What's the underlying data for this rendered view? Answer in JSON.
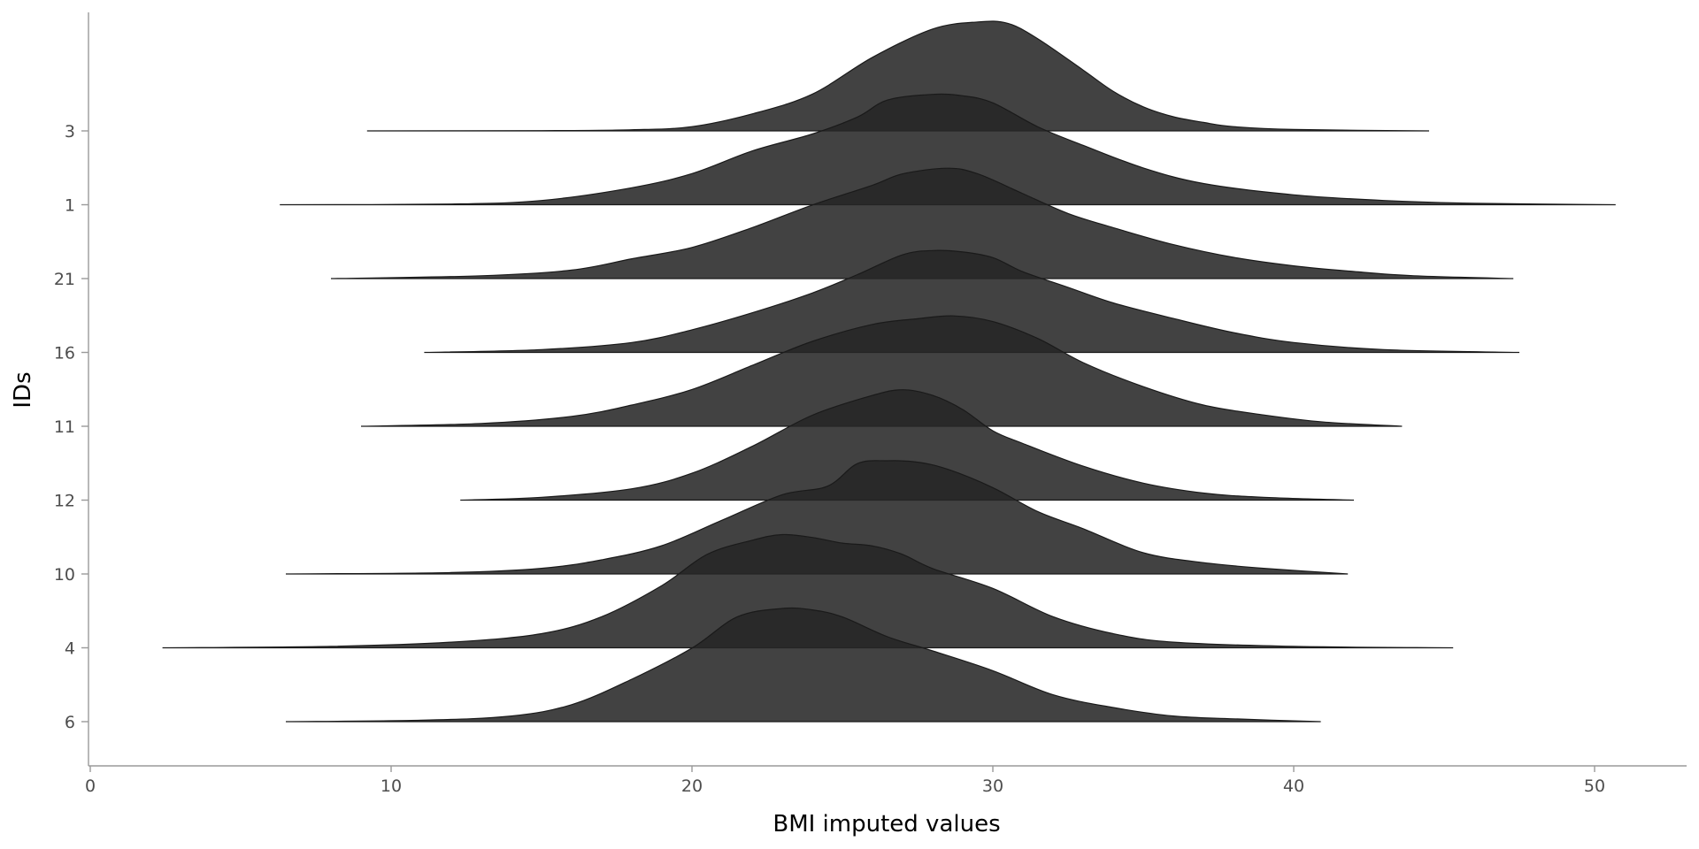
{
  "chart_data": {
    "type": "ridgeline",
    "xlabel": "BMI imputed values",
    "ylabel": "IDs",
    "xlim": [
      0,
      53
    ],
    "x_ticks": [
      0,
      10,
      20,
      30,
      40,
      50
    ],
    "grid": false,
    "fill_color": "#262626",
    "categories": [
      "3",
      "1",
      "21",
      "16",
      "11",
      "12",
      "10",
      "4",
      "6"
    ],
    "series": [
      {
        "id": "3",
        "range": [
          9.2,
          44.5
        ],
        "points": [
          [
            9.2,
            0
          ],
          [
            15,
            0.002
          ],
          [
            18,
            0.008
          ],
          [
            20,
            0.03
          ],
          [
            22,
            0.12
          ],
          [
            24,
            0.26
          ],
          [
            26,
            0.52
          ],
          [
            28,
            0.72
          ],
          [
            29.5,
            0.77
          ],
          [
            30.5,
            0.76
          ],
          [
            31.5,
            0.65
          ],
          [
            33,
            0.43
          ],
          [
            34,
            0.28
          ],
          [
            35,
            0.17
          ],
          [
            36,
            0.1
          ],
          [
            37,
            0.06
          ],
          [
            38,
            0.03
          ],
          [
            40,
            0.01
          ],
          [
            44.5,
            0
          ]
        ]
      },
      {
        "id": "1",
        "range": [
          6.3,
          50.7
        ],
        "points": [
          [
            6.3,
            0
          ],
          [
            12,
            0.005
          ],
          [
            15,
            0.03
          ],
          [
            18,
            0.12
          ],
          [
            20,
            0.22
          ],
          [
            22,
            0.38
          ],
          [
            24,
            0.5
          ],
          [
            25.5,
            0.62
          ],
          [
            26.5,
            0.74
          ],
          [
            28,
            0.78
          ],
          [
            29,
            0.77
          ],
          [
            30,
            0.72
          ],
          [
            31.5,
            0.55
          ],
          [
            33,
            0.42
          ],
          [
            35,
            0.26
          ],
          [
            37,
            0.15
          ],
          [
            40,
            0.07
          ],
          [
            43,
            0.03
          ],
          [
            46,
            0.01
          ],
          [
            50.7,
            0
          ]
        ]
      },
      {
        "id": "21",
        "range": [
          8.0,
          47.3
        ],
        "points": [
          [
            8,
            0
          ],
          [
            13,
            0.02
          ],
          [
            16,
            0.06
          ],
          [
            18,
            0.14
          ],
          [
            20,
            0.22
          ],
          [
            22,
            0.36
          ],
          [
            24,
            0.52
          ],
          [
            26,
            0.66
          ],
          [
            27,
            0.74
          ],
          [
            28.5,
            0.78
          ],
          [
            29.5,
            0.74
          ],
          [
            31,
            0.6
          ],
          [
            32.5,
            0.46
          ],
          [
            34,
            0.36
          ],
          [
            36,
            0.24
          ],
          [
            38,
            0.15
          ],
          [
            40,
            0.09
          ],
          [
            42,
            0.05
          ],
          [
            44,
            0.02
          ],
          [
            47.3,
            0
          ]
        ]
      },
      {
        "id": "16",
        "range": [
          11.1,
          47.5
        ],
        "points": [
          [
            11.1,
            0
          ],
          [
            15,
            0.02
          ],
          [
            18,
            0.07
          ],
          [
            20,
            0.16
          ],
          [
            22,
            0.28
          ],
          [
            24,
            0.42
          ],
          [
            25.5,
            0.55
          ],
          [
            27,
            0.69
          ],
          [
            28,
            0.72
          ],
          [
            29,
            0.71
          ],
          [
            30,
            0.67
          ],
          [
            31,
            0.57
          ],
          [
            32.5,
            0.46
          ],
          [
            34,
            0.35
          ],
          [
            36,
            0.24
          ],
          [
            38,
            0.14
          ],
          [
            40,
            0.07
          ],
          [
            43,
            0.02
          ],
          [
            47.5,
            0
          ]
        ]
      },
      {
        "id": "11",
        "range": [
          9.0,
          43.6
        ],
        "points": [
          [
            9,
            0
          ],
          [
            13,
            0.02
          ],
          [
            16,
            0.07
          ],
          [
            18,
            0.15
          ],
          [
            20,
            0.26
          ],
          [
            22,
            0.43
          ],
          [
            24,
            0.6
          ],
          [
            26,
            0.72
          ],
          [
            27.5,
            0.76
          ],
          [
            28.7,
            0.78
          ],
          [
            30,
            0.74
          ],
          [
            31.5,
            0.62
          ],
          [
            33,
            0.45
          ],
          [
            35,
            0.28
          ],
          [
            37,
            0.15
          ],
          [
            39,
            0.08
          ],
          [
            41,
            0.03
          ],
          [
            43.6,
            0
          ]
        ]
      },
      {
        "id": "12",
        "range": [
          12.3,
          42.0
        ],
        "points": [
          [
            12.3,
            0
          ],
          [
            15,
            0.02
          ],
          [
            18,
            0.08
          ],
          [
            20,
            0.19
          ],
          [
            22,
            0.38
          ],
          [
            24,
            0.6
          ],
          [
            26,
            0.74
          ],
          [
            27,
            0.78
          ],
          [
            28,
            0.74
          ],
          [
            29,
            0.64
          ],
          [
            30,
            0.49
          ],
          [
            31,
            0.4
          ],
          [
            33,
            0.24
          ],
          [
            35,
            0.12
          ],
          [
            37,
            0.05
          ],
          [
            39,
            0.02
          ],
          [
            42,
            0
          ]
        ]
      },
      {
        "id": "10",
        "range": [
          6.5,
          41.8
        ],
        "points": [
          [
            6.5,
            0
          ],
          [
            12,
            0.01
          ],
          [
            15,
            0.04
          ],
          [
            17,
            0.1
          ],
          [
            19,
            0.2
          ],
          [
            21,
            0.38
          ],
          [
            23,
            0.56
          ],
          [
            24.5,
            0.62
          ],
          [
            25.5,
            0.78
          ],
          [
            26.5,
            0.8
          ],
          [
            27.5,
            0.79
          ],
          [
            28.5,
            0.74
          ],
          [
            30,
            0.61
          ],
          [
            31.5,
            0.44
          ],
          [
            33,
            0.32
          ],
          [
            35,
            0.15
          ],
          [
            37,
            0.08
          ],
          [
            39,
            0.04
          ],
          [
            41.8,
            0
          ]
        ]
      },
      {
        "id": "4",
        "range": [
          2.4,
          45.3
        ],
        "points": [
          [
            2.4,
            0
          ],
          [
            8,
            0.01
          ],
          [
            12,
            0.04
          ],
          [
            15,
            0.1
          ],
          [
            17,
            0.22
          ],
          [
            19,
            0.44
          ],
          [
            20.5,
            0.66
          ],
          [
            22,
            0.76
          ],
          [
            23,
            0.8
          ],
          [
            24,
            0.78
          ],
          [
            25,
            0.74
          ],
          [
            26,
            0.72
          ],
          [
            27,
            0.66
          ],
          [
            28,
            0.56
          ],
          [
            30,
            0.42
          ],
          [
            32,
            0.22
          ],
          [
            34,
            0.1
          ],
          [
            36,
            0.04
          ],
          [
            40,
            0.01
          ],
          [
            45.3,
            0
          ]
        ]
      },
      {
        "id": "6",
        "range": [
          6.5,
          40.9
        ],
        "points": [
          [
            6.5,
            0
          ],
          [
            11,
            0.01
          ],
          [
            14,
            0.04
          ],
          [
            16,
            0.12
          ],
          [
            18,
            0.3
          ],
          [
            20,
            0.52
          ],
          [
            21.5,
            0.74
          ],
          [
            23,
            0.8
          ],
          [
            24,
            0.79
          ],
          [
            25,
            0.74
          ],
          [
            26.5,
            0.6
          ],
          [
            28,
            0.5
          ],
          [
            30,
            0.36
          ],
          [
            32,
            0.19
          ],
          [
            34,
            0.1
          ],
          [
            36,
            0.04
          ],
          [
            38,
            0.02
          ],
          [
            40.9,
            0
          ]
        ]
      }
    ]
  }
}
